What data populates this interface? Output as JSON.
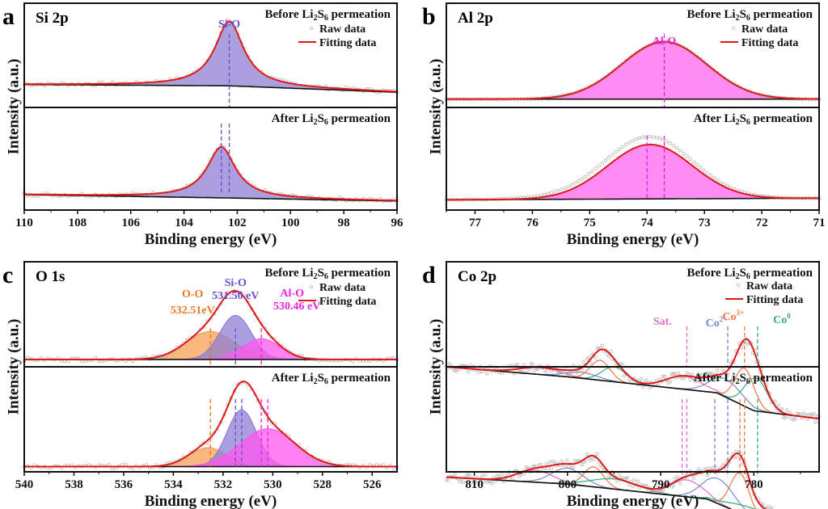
{
  "chart_data": [
    {
      "id": "a",
      "type": "line",
      "panel_letter": "a",
      "title": "Si 2p",
      "xlabel": "Binding energy (eV)",
      "ylabel": "Intensity (a.u.)",
      "xlim": [
        110,
        96
      ],
      "xticks": [
        110,
        108,
        106,
        104,
        102,
        100,
        98,
        96
      ],
      "legend": {
        "raw": "Raw data",
        "fit": "Fitting data",
        "position": "top-right"
      },
      "subplots": [
        {
          "condition_prefix": "Before Li",
          "condition_sub1": "2",
          "condition_mid": "S",
          "condition_sub2": "6",
          "condition_suffix": " permeation",
          "baseline": [
            [
              110,
              0.22
            ],
            [
              102.3,
              0.2
            ],
            [
              96,
              0.1
            ]
          ],
          "components": [
            {
              "name": "Si-O",
              "center": 102.3,
              "height": 1.0,
              "fwhm": 1.3,
              "shape": "lorentz",
              "color": "#8f7fd4"
            }
          ],
          "markers": [
            {
              "label": "Si-O",
              "x": 102.3,
              "color": "#6a4fcf"
            }
          ]
        },
        {
          "condition_prefix": "After Li",
          "condition_sub1": "2",
          "condition_mid": "S",
          "condition_sub2": "6",
          "condition_suffix": " permeation",
          "baseline": [
            [
              110,
              0.2
            ],
            [
              102.6,
              0.15
            ],
            [
              96,
              0.1
            ]
          ],
          "components": [
            {
              "name": "Si-O",
              "center": 102.6,
              "height": 0.8,
              "fwhm": 1.3,
              "shape": "lorentz",
              "color": "#8f7fd4"
            }
          ],
          "markers": [
            {
              "x": 102.3,
              "color": "#6a4fcf"
            },
            {
              "x": 102.6,
              "color": "#6a4fcf"
            }
          ]
        }
      ]
    },
    {
      "id": "b",
      "type": "line",
      "panel_letter": "b",
      "title": "Al 2p",
      "xlabel": "Binding energy (eV)",
      "ylabel": "Intensity (a.u.)",
      "xlim": [
        77.5,
        71
      ],
      "xticks": [
        77,
        76,
        75,
        74,
        73,
        72,
        71
      ],
      "legend": {
        "raw": "Raw data",
        "fit": "Fitting data",
        "position": "top-right"
      },
      "subplots": [
        {
          "condition_prefix": "Before Li",
          "condition_sub1": "2",
          "condition_mid": "S",
          "condition_sub2": "6",
          "condition_suffix": " permeation",
          "baseline": [
            [
              77.5,
              0.05
            ],
            [
              71,
              0.05
            ]
          ],
          "components": [
            {
              "name": "Al-O",
              "center": 73.7,
              "height": 1.0,
              "fwhm": 1.75,
              "shape": "gauss",
              "color": "#ff66ee"
            }
          ],
          "markers": [
            {
              "label": "Al-O",
              "x": 73.7,
              "color": "#ee22dd"
            }
          ]
        },
        {
          "condition_prefix": "After Li",
          "condition_sub1": "2",
          "condition_mid": "S",
          "condition_sub2": "6",
          "condition_suffix": " permeation",
          "baseline": [
            [
              77.5,
              0.05
            ],
            [
              71,
              0.08
            ]
          ],
          "components": [
            {
              "name": "Al-O",
              "center": 73.95,
              "height": 1.0,
              "fwhm": 1.75,
              "shape": "gauss",
              "color": "#ff66ee"
            }
          ],
          "markers": [
            {
              "x": 73.7,
              "color": "#ee22dd"
            },
            {
              "x": 74.0,
              "color": "#ee22dd"
            }
          ]
        }
      ]
    },
    {
      "id": "c",
      "type": "line",
      "panel_letter": "c",
      "title": "O 1s",
      "xlabel": "Binding energy (eV)",
      "ylabel": "Intensity (a.u.)",
      "xlim": [
        540,
        525
      ],
      "xticks": [
        540,
        538,
        536,
        534,
        532,
        530,
        528,
        526
      ],
      "legend": {
        "raw": "Raw data",
        "fit": "Fitting data",
        "position": "top-right"
      },
      "subplots": [
        {
          "condition_prefix": "Before Li",
          "condition_sub1": "2",
          "condition_mid": "S",
          "condition_sub2": "6",
          "condition_suffix": " permeation",
          "baseline": [
            [
              540,
              0.05
            ],
            [
              525,
              0.05
            ]
          ],
          "components": [
            {
              "name": "O-O",
              "center": 532.51,
              "height": 0.38,
              "fwhm": 2.3,
              "shape": "gauss",
              "color": "#f5a055"
            },
            {
              "name": "Si-O",
              "center": 531.5,
              "height": 0.6,
              "fwhm": 1.5,
              "shape": "gauss",
              "color": "#8f7fd4"
            },
            {
              "name": "Al-O",
              "center": 530.46,
              "height": 0.28,
              "fwhm": 1.8,
              "shape": "gauss",
              "color": "#ff55ee"
            }
          ],
          "markers": [
            {
              "label": "O-O",
              "value_label": "532.51eV",
              "x": 532.51,
              "color": "#ee7722"
            },
            {
              "label": "Si-O",
              "value_label": "531.50 eV",
              "x": 531.5,
              "color": "#6a4fcf"
            },
            {
              "label": "Al-O",
              "value_label": "530.46 eV",
              "x": 530.46,
              "color": "#ee22dd"
            }
          ]
        },
        {
          "condition_prefix": "After Li",
          "condition_sub1": "2",
          "condition_mid": "S",
          "condition_sub2": "6",
          "condition_suffix": " permeation",
          "baseline": [
            [
              540,
              0.05
            ],
            [
              525,
              0.05
            ]
          ],
          "components": [
            {
              "name": "O-O",
              "center": 532.6,
              "height": 0.25,
              "fwhm": 1.8,
              "shape": "gauss",
              "color": "#f5a055"
            },
            {
              "name": "Si-O",
              "center": 531.25,
              "height": 0.75,
              "fwhm": 1.4,
              "shape": "gauss",
              "color": "#8f7fd4"
            },
            {
              "name": "Al-O",
              "center": 530.2,
              "height": 0.5,
              "fwhm": 2.6,
              "shape": "gauss",
              "color": "#ff55ee"
            }
          ],
          "markers": [
            {
              "x": 532.51,
              "color": "#ee7722"
            },
            {
              "x": 531.5,
              "color": "#6a4fcf"
            },
            {
              "x": 531.25,
              "color": "#6a4fcf"
            },
            {
              "x": 530.46,
              "color": "#ee22dd"
            },
            {
              "x": 530.2,
              "color": "#ee22dd"
            }
          ]
        }
      ]
    },
    {
      "id": "d",
      "type": "line",
      "panel_letter": "d",
      "title": "Co 2p",
      "xlabel": "Binding energy (eV)",
      "ylabel": "Intensity (a.u.)",
      "xlim": [
        813,
        773
      ],
      "xticks": [
        810,
        800,
        790,
        780
      ],
      "legend": {
        "raw": "Raw data",
        "fit": "Fitting data",
        "position": "top-right"
      },
      "subplots": [
        {
          "condition_prefix": "Before Li",
          "condition_sub1": "2",
          "condition_mid": "S",
          "condition_sub2": "6",
          "condition_suffix": " permeation",
          "baseline": [
            [
              813,
              0.62
            ],
            [
              800,
              0.52
            ],
            [
              790,
              0.42
            ],
            [
              784,
              0.36
            ],
            [
              780,
              0.18
            ],
            [
              773,
              0.1
            ]
          ],
          "components": [
            {
              "name": "Sat.",
              "center": 803,
              "height": 0.07,
              "fwhm": 5,
              "shape": "gauss",
              "color": "#e070c8"
            },
            {
              "name": "Co2+",
              "center": 798.5,
              "height": 0.06,
              "fwhm": 4,
              "shape": "gauss",
              "color": "#7788cc"
            },
            {
              "name": "Co3+",
              "center": 796.5,
              "height": 0.2,
              "fwhm": 2.5,
              "shape": "gauss",
              "color": "#ee7744"
            },
            {
              "name": "Co0",
              "center": 795,
              "height": 0.15,
              "fwhm": 3,
              "shape": "gauss",
              "color": "#33aa77"
            },
            {
              "name": "Sat.",
              "center": 787.5,
              "height": 0.13,
              "fwhm": 4.5,
              "shape": "gauss",
              "color": "#e070c8"
            },
            {
              "name": "Co2+",
              "center": 783,
              "height": 0.18,
              "fwhm": 4,
              "shape": "gauss",
              "color": "#7788cc"
            },
            {
              "name": "Co3+",
              "center": 781,
              "height": 0.38,
              "fwhm": 2.4,
              "shape": "gauss",
              "color": "#ee7744"
            },
            {
              "name": "Co0",
              "center": 779.8,
              "height": 0.33,
              "fwhm": 2.8,
              "shape": "gauss",
              "color": "#33aa77"
            }
          ],
          "markers": [
            {
              "label": "Sat.",
              "x": 787.2,
              "color": "#e070c8"
            },
            {
              "label": "Co",
              "sup": "2+",
              "x": 782.8,
              "color": "#7788cc"
            },
            {
              "label": "Co",
              "sup": "3+",
              "x": 781,
              "color": "#ee7744"
            },
            {
              "label": "Co",
              "sup": "0",
              "x": 779.6,
              "color": "#33aa77"
            }
          ]
        },
        {
          "condition_prefix": "After Li",
          "condition_sub1": "2",
          "condition_mid": "S",
          "condition_sub2": "6",
          "condition_suffix": " permeation",
          "baseline": [
            [
              813,
              0.62
            ],
            [
              800,
              0.55
            ],
            [
              790,
              0.45
            ],
            [
              785,
              0.4
            ],
            [
              780,
              0.2
            ],
            [
              773,
              0.18
            ]
          ],
          "components": [
            {
              "name": "Sat.",
              "center": 803.5,
              "height": 0.12,
              "fwhm": 4.5,
              "shape": "gauss",
              "color": "#e070c8"
            },
            {
              "name": "Co2+",
              "center": 800,
              "height": 0.16,
              "fwhm": 4,
              "shape": "gauss",
              "color": "#7788cc"
            },
            {
              "name": "Co3+",
              "center": 797.2,
              "height": 0.2,
              "fwhm": 2.5,
              "shape": "gauss",
              "color": "#ee7744"
            },
            {
              "name": "Co0",
              "center": 795,
              "height": 0.1,
              "fwhm": 6,
              "shape": "gauss",
              "color": "#33aa77"
            },
            {
              "name": "Sat.",
              "center": 787.2,
              "height": 0.17,
              "fwhm": 4,
              "shape": "gauss",
              "color": "#e070c8"
            },
            {
              "name": "Co2+",
              "center": 783.8,
              "height": 0.25,
              "fwhm": 4,
              "shape": "gauss",
              "color": "#7788cc"
            },
            {
              "name": "Co3+",
              "center": 781.5,
              "height": 0.4,
              "fwhm": 2.4,
              "shape": "gauss",
              "color": "#ee7744"
            },
            {
              "name": "Co0",
              "center": 780,
              "height": 0.1,
              "fwhm": 6,
              "shape": "gauss",
              "color": "#33aa77"
            }
          ],
          "markers": [
            {
              "x": 787.7,
              "color": "#e070c8"
            },
            {
              "x": 787.2,
              "color": "#e070c8"
            },
            {
              "x": 784.2,
              "color": "#7788cc"
            },
            {
              "x": 782.8,
              "color": "#7788cc"
            },
            {
              "x": 781.5,
              "color": "#ee7744"
            },
            {
              "x": 781,
              "color": "#ee7744"
            },
            {
              "x": 779.6,
              "color": "#33aa77"
            }
          ]
        }
      ]
    }
  ]
}
